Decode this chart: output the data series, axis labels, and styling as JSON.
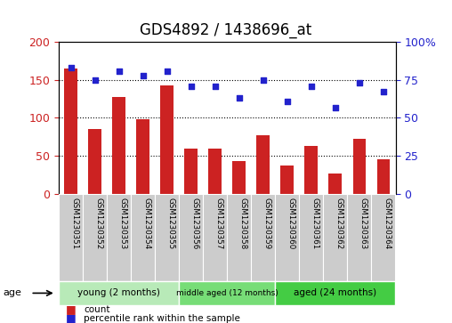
{
  "title": "GDS4892 / 1438696_at",
  "samples": [
    "GSM1230351",
    "GSM1230352",
    "GSM1230353",
    "GSM1230354",
    "GSM1230355",
    "GSM1230356",
    "GSM1230357",
    "GSM1230358",
    "GSM1230359",
    "GSM1230360",
    "GSM1230361",
    "GSM1230362",
    "GSM1230363",
    "GSM1230364"
  ],
  "counts": [
    165,
    85,
    128,
    98,
    143,
    60,
    60,
    43,
    77,
    37,
    63,
    27,
    73,
    45
  ],
  "percentiles": [
    83,
    75,
    81,
    78,
    81,
    71,
    71,
    63,
    75,
    61,
    71,
    57,
    73,
    67
  ],
  "bar_color": "#cc2222",
  "dot_color": "#2222cc",
  "ylim_left": [
    0,
    200
  ],
  "ylim_right": [
    0,
    100
  ],
  "yticks_left": [
    0,
    50,
    100,
    150,
    200
  ],
  "yticks_right": [
    0,
    25,
    50,
    75,
    100
  ],
  "yticklabels_right": [
    "0",
    "25",
    "50",
    "75",
    "100%"
  ],
  "groups": [
    {
      "label": "young (2 months)",
      "start": 0,
      "end": 5,
      "color": "#b8eab8"
    },
    {
      "label": "middle aged (12 months)",
      "start": 5,
      "end": 9,
      "color": "#77dd77"
    },
    {
      "label": "aged (24 months)",
      "start": 9,
      "end": 14,
      "color": "#44cc44"
    }
  ],
  "age_label": "age",
  "legend_count_label": "count",
  "legend_percentile_label": "percentile rank within the sample",
  "tick_area_color": "#cccccc",
  "title_fontsize": 12,
  "axis_fontsize": 9,
  "label_fontsize": 8
}
